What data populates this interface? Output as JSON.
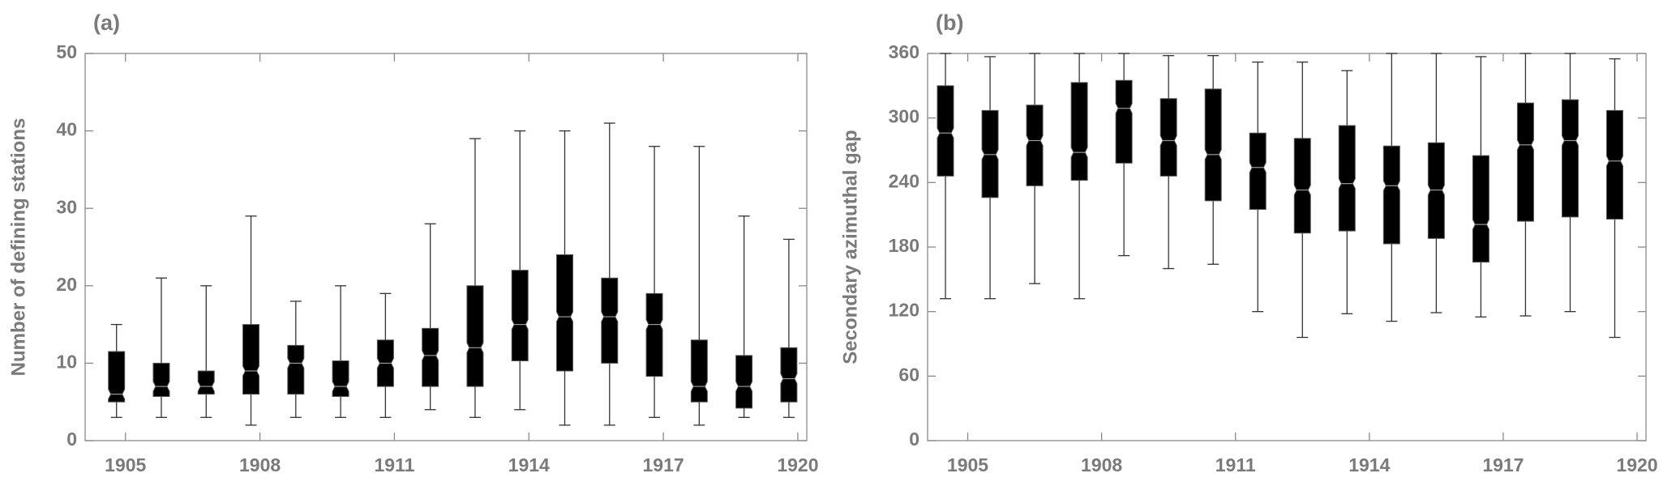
{
  "chart_data": [
    {
      "type": "box",
      "panel_label": "(a)",
      "y_label": "Number of defining stations",
      "color": "#000000",
      "x": [
        1904.8,
        1905.8,
        1906.8,
        1907.8,
        1908.8,
        1909.8,
        1910.8,
        1911.8,
        1912.8,
        1913.8,
        1914.8,
        1915.8,
        1916.8,
        1917.8,
        1918.8,
        1919.8
      ],
      "min": [
        3,
        3,
        3,
        2,
        3,
        3,
        3,
        4,
        3,
        4,
        2,
        2,
        3,
        2,
        3,
        3
      ],
      "q1": [
        5,
        5.7,
        6,
        6,
        6,
        5.7,
        7,
        7,
        7,
        10.3,
        9,
        10,
        8.3,
        5,
        4.2,
        5
      ],
      "median": [
        6,
        7,
        7,
        9,
        10,
        7,
        10,
        11,
        12,
        15,
        16,
        16,
        15,
        7,
        7,
        8
      ],
      "q3": [
        11.5,
        10,
        9,
        15,
        12.3,
        10.3,
        13,
        14.5,
        20,
        22,
        24,
        21,
        19,
        13,
        11,
        12
      ],
      "max": [
        15,
        21,
        20,
        29,
        18,
        20,
        19,
        28,
        39,
        40,
        40,
        41,
        38,
        38,
        29,
        26
      ],
      "xlim": [
        1904.1,
        1920.2
      ],
      "xticks": [
        1905,
        1908,
        1911,
        1914,
        1917,
        1920
      ],
      "ylim": [
        0,
        50
      ],
      "yticks": [
        0,
        10,
        20,
        30,
        40,
        50
      ]
    },
    {
      "type": "box",
      "panel_label": "(b)",
      "y_label": "Secondary azimuthal gap",
      "color": "#000000",
      "x": [
        1904.5,
        1905.5,
        1906.5,
        1907.5,
        1908.5,
        1909.5,
        1910.5,
        1911.5,
        1912.5,
        1913.5,
        1914.5,
        1915.5,
        1916.5,
        1917.5,
        1918.5,
        1919.5
      ],
      "min": [
        132,
        132,
        146,
        132,
        172,
        160,
        164,
        120,
        96,
        118,
        111,
        119,
        115,
        116,
        120,
        96
      ],
      "q1": [
        246,
        226,
        237,
        242,
        258,
        246,
        223,
        215,
        193,
        195,
        183,
        188,
        166,
        204,
        208,
        206
      ],
      "median": [
        286,
        266,
        279,
        268,
        309,
        279,
        266,
        254,
        233,
        239,
        237,
        233,
        201,
        275,
        279,
        260
      ],
      "q3": [
        330,
        307,
        312,
        333,
        335,
        318,
        327,
        286,
        281,
        293,
        274,
        277,
        265,
        314,
        317,
        307
      ],
      "max": [
        360,
        357,
        360,
        360,
        360,
        358,
        358,
        352,
        352,
        344,
        360,
        360,
        357,
        360,
        360,
        355
      ],
      "xlim": [
        1904.1,
        1920.2
      ],
      "xticks": [
        1905,
        1908,
        1911,
        1914,
        1917,
        1920
      ],
      "ylim": [
        0,
        360
      ],
      "yticks": [
        0,
        60,
        120,
        180,
        240,
        300,
        360
      ]
    }
  ]
}
